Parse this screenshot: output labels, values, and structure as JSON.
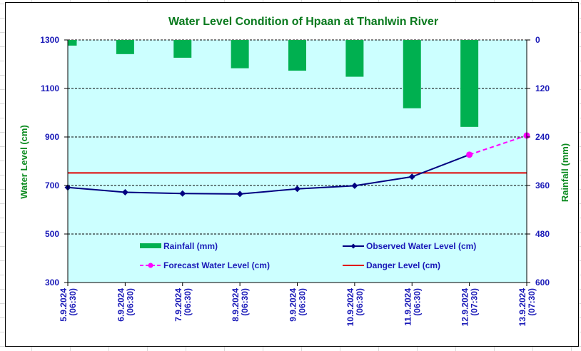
{
  "chart_data": {
    "type": "bar+line",
    "title": "Water Level Condition of Hpaan at Thanlwin River",
    "categories": [
      [
        "5.9.2024",
        "(06:30)"
      ],
      [
        "6.9.2024",
        "(06:30)"
      ],
      [
        "7.9.2024",
        "(06:30)"
      ],
      [
        "8.9.2024",
        "(06:30)"
      ],
      [
        "9.9.2024",
        "(06:30)"
      ],
      [
        "10.9.2024",
        "(06:30)"
      ],
      [
        "11.9.2024",
        "(06:30)"
      ],
      [
        "12.9.2024",
        "(07:30)"
      ],
      [
        "13.9.2024",
        "(07:30)"
      ]
    ],
    "ylabel_left": "Water Level (cm)",
    "ylabel_right": "Rainfall (mm)",
    "ylim_left": [
      300,
      1300
    ],
    "yticks_left": [
      300,
      500,
      700,
      900,
      1100,
      1300
    ],
    "ylim_right_inverted": [
      0,
      600
    ],
    "yticks_right": [
      0,
      120,
      240,
      360,
      480,
      600
    ],
    "grid": "horizontal dashed",
    "series": [
      {
        "name": "Rainfall (mm)",
        "type": "bar",
        "axis": "right",
        "color": "#00b050",
        "values": [
          14,
          35,
          44,
          70,
          76,
          91,
          169,
          215,
          null
        ]
      },
      {
        "name": "Observed Water Level (cm)",
        "type": "line",
        "axis": "left",
        "color": "#000080",
        "marker": "diamond",
        "values": [
          692,
          672,
          667,
          665,
          686,
          699,
          736,
          827,
          null
        ]
      },
      {
        "name": "Forecast Water Level (cm)",
        "type": "line",
        "axis": "left",
        "color": "#ff00ff",
        "marker": "circle",
        "dashed": true,
        "values": [
          null,
          null,
          null,
          null,
          null,
          null,
          null,
          827,
          906
        ]
      },
      {
        "name": "Danger Level (cm)",
        "type": "line",
        "axis": "left",
        "color": "#e00000",
        "values": [
          752,
          752,
          752,
          752,
          752,
          752,
          752,
          752,
          752
        ]
      }
    ],
    "legend": {
      "placement": "inside-bottom",
      "entries": [
        "Rainfall (mm)",
        "Observed Water Level (cm)",
        "Forecast Water Level (cm)",
        "Danger Level (cm)"
      ]
    },
    "plot_background": "#ccffff"
  }
}
